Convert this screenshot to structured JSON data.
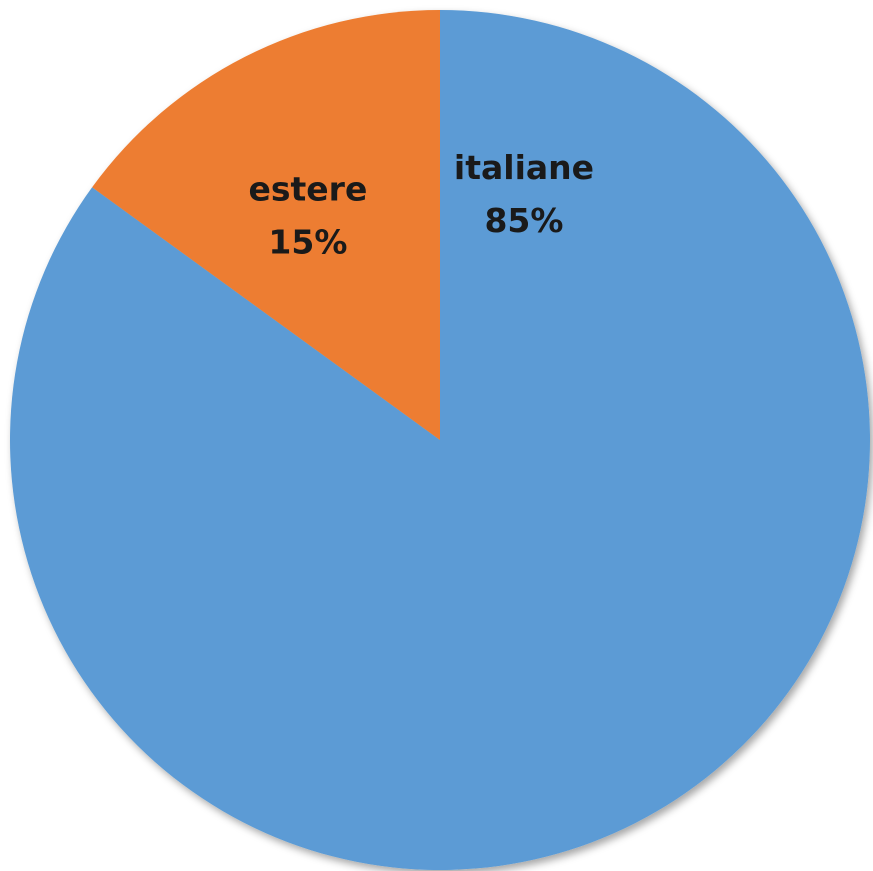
{
  "chart_data": {
    "type": "pie",
    "title": "",
    "categories": [
      "italiane",
      "estere"
    ],
    "values": [
      85,
      15
    ],
    "percent_labels": [
      "85%",
      "15%"
    ],
    "colors": [
      "#5b9bd5",
      "#ed7d31"
    ],
    "start_angle_deg": 0,
    "direction": "clockwise",
    "legend": "none"
  }
}
